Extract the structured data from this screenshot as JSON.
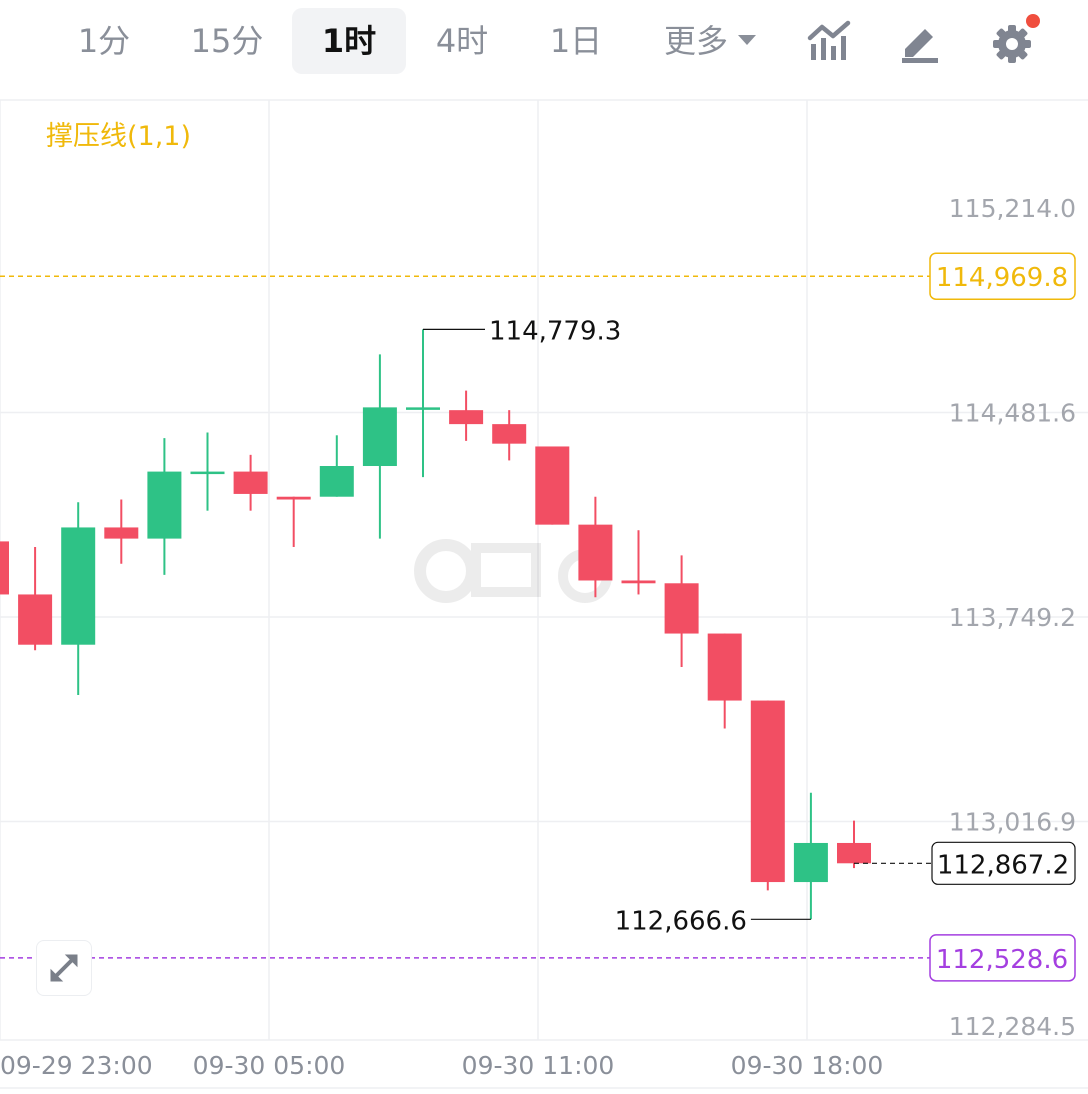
{
  "toolbar": {
    "timeframes": [
      "1分",
      "15分",
      "1时",
      "4时",
      "1日"
    ],
    "active_timeframe": "1时",
    "more_label": "更多",
    "icons": [
      "chart-type-icon",
      "draw-pencil-icon",
      "settings-gear-icon"
    ],
    "settings_badge_color": "#f04e3e"
  },
  "indicator": {
    "label": "撑压线(1,1)",
    "color": "#f0b90b"
  },
  "colors": {
    "up": "#2ec286",
    "down": "#f24e63",
    "grid": "#eeeff2",
    "axis_text": "#a3a6ad"
  },
  "chart_data": {
    "type": "candlestick",
    "y_ticks": [
      "115,214.0",
      "114,481.6",
      "113,749.2",
      "113,016.9",
      "112,284.5"
    ],
    "x_ticks": [
      "09-29 23:00",
      "09-30 05:00",
      "09-30 11:00",
      "09-30 18:00"
    ],
    "candles": [
      {
        "o": 114020,
        "c": 113830,
        "h": 114020,
        "l": 113830
      },
      {
        "o": 113830,
        "c": 113650,
        "h": 114000,
        "l": 113630
      },
      {
        "o": 113650,
        "c": 114070,
        "h": 114160,
        "l": 113470
      },
      {
        "o": 114070,
        "c": 114030,
        "h": 114170,
        "l": 113940
      },
      {
        "o": 114030,
        "c": 114270,
        "h": 114390,
        "l": 113900
      },
      {
        "o": 114270,
        "c": 114270,
        "h": 114410,
        "l": 114130
      },
      {
        "o": 114270,
        "c": 114190,
        "h": 114330,
        "l": 114130
      },
      {
        "o": 114180,
        "c": 114170,
        "h": 114180,
        "l": 114000
      },
      {
        "o": 114180,
        "c": 114290,
        "h": 114400,
        "l": 114180
      },
      {
        "o": 114290,
        "c": 114500,
        "h": 114690,
        "l": 114030
      },
      {
        "o": 114500,
        "c": 114500,
        "h": 114779.3,
        "l": 114250
      },
      {
        "o": 114490,
        "c": 114440,
        "h": 114560,
        "l": 114380
      },
      {
        "o": 114440,
        "c": 114370,
        "h": 114490,
        "l": 114310
      },
      {
        "o": 114360,
        "c": 114080,
        "h": 114360,
        "l": 114080
      },
      {
        "o": 114080,
        "c": 113880,
        "h": 114180,
        "l": 113820
      },
      {
        "o": 113880,
        "c": 113870,
        "h": 114060,
        "l": 113830
      },
      {
        "o": 113870,
        "c": 113690,
        "h": 113970,
        "l": 113570
      },
      {
        "o": 113690,
        "c": 113450,
        "h": 113690,
        "l": 113350
      },
      {
        "o": 113450,
        "c": 112800,
        "h": 113450,
        "l": 112770
      },
      {
        "o": 112800,
        "c": 112940,
        "h": 113120,
        "l": 112666.6
      },
      {
        "o": 112940,
        "c": 112867.2,
        "h": 113020,
        "l": 112850
      }
    ],
    "high_label": "114,779.3",
    "low_label": "112,666.6",
    "last_price_label": "112,867.2",
    "resistance": {
      "label": "114,969.8",
      "color": "#f0b90b"
    },
    "support": {
      "label": "112,528.6",
      "color": "#a43fe0"
    }
  }
}
